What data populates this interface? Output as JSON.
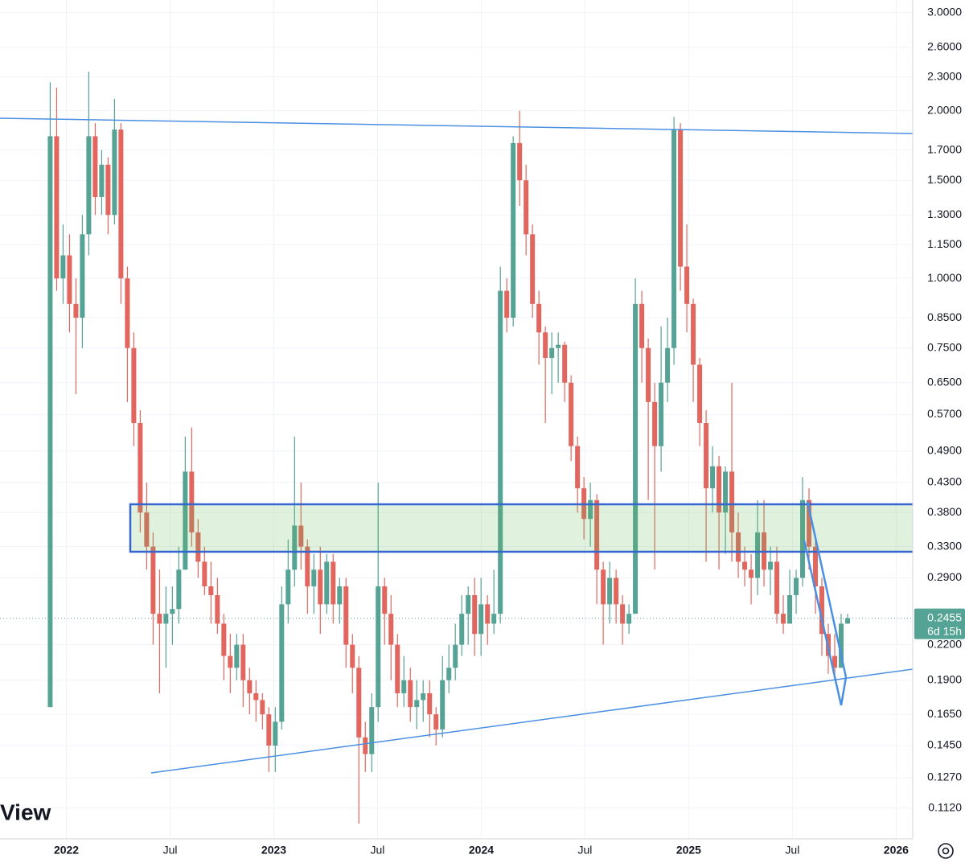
{
  "chart_data": {
    "type": "candlestick",
    "watermark": "View",
    "log_scale": true,
    "grid": true,
    "up_color": "#55a394",
    "down_color": "#e2665e",
    "xlim": [
      2021.68,
      2026.08
    ],
    "xticks": [
      2022,
      {
        "value": 2022.5,
        "label": "Jul"
      },
      2023,
      {
        "value": 2023.5,
        "label": "Jul"
      },
      2024,
      {
        "value": 2024.5,
        "label": "Jul"
      },
      2025,
      {
        "value": 2025.5,
        "label": "Jul"
      },
      2026
    ],
    "ylim": [
      0.0986,
      3.161
    ],
    "yticks": [
      {
        "value": 3,
        "label": "3.0000"
      },
      {
        "value": 2.6,
        "label": "2.6000"
      },
      {
        "value": 2.3,
        "label": "2.3000"
      },
      {
        "value": 2,
        "label": "2.0000"
      },
      {
        "value": 1.7,
        "label": "1.7000"
      },
      {
        "value": 1.5,
        "label": "1.5000"
      },
      {
        "value": 1.3,
        "label": "1.3000"
      },
      {
        "value": 1.15,
        "label": "1.1500"
      },
      {
        "value": 1,
        "label": "1.0000"
      },
      {
        "value": 0.85,
        "label": "0.8500"
      },
      {
        "value": 0.75,
        "label": "0.7500"
      },
      {
        "value": 0.65,
        "label": "0.6500"
      },
      {
        "value": 0.57,
        "label": "0.5700"
      },
      {
        "value": 0.49,
        "label": "0.4900"
      },
      {
        "value": 0.43,
        "label": "0.4300"
      },
      {
        "value": 0.38,
        "label": "0.3800"
      },
      {
        "value": 0.33,
        "label": "0.3300"
      },
      {
        "value": 0.29,
        "label": "0.2900"
      },
      {
        "value": 0.22,
        "label": "0.2200"
      },
      {
        "value": 0.19,
        "label": "0.1900"
      },
      {
        "value": 0.165,
        "label": "0.1650"
      },
      {
        "value": 0.145,
        "label": "0.1450"
      },
      {
        "value": 0.127,
        "label": "0.1270"
      },
      {
        "value": 0.112,
        "label": "0.1120"
      }
    ],
    "last_price": {
      "value": 0.2455,
      "label": "0.2455"
    },
    "countdown": "6d 15h",
    "x": [
      2021.922,
      2021.953,
      2021.984,
      2022.015,
      2022.046,
      2022.077,
      2022.108,
      2022.139,
      2022.17,
      2022.201,
      2022.232,
      2022.263,
      2022.294,
      2022.325,
      2022.356,
      2022.387,
      2022.418,
      2022.449,
      2022.48,
      2022.511,
      2022.542,
      2022.573,
      2022.604,
      2022.635,
      2022.666,
      2022.697,
      2022.728,
      2022.759,
      2022.79,
      2022.821,
      2022.852,
      2022.883,
      2022.914,
      2022.945,
      2022.976,
      2023.007,
      2023.038,
      2023.069,
      2023.1,
      2023.131,
      2023.162,
      2023.193,
      2023.224,
      2023.255,
      2023.286,
      2023.317,
      2023.348,
      2023.379,
      2023.41,
      2023.441,
      2023.472,
      2023.503,
      2023.534,
      2023.565,
      2023.596,
      2023.627,
      2023.658,
      2023.689,
      2023.72,
      2023.751,
      2023.782,
      2023.813,
      2023.844,
      2023.875,
      2023.906,
      2023.937,
      2023.968,
      2023.999,
      2024.03,
      2024.061,
      2024.092,
      2024.123,
      2024.154,
      2024.185,
      2024.216,
      2024.247,
      2024.278,
      2024.309,
      2024.34,
      2024.371,
      2024.402,
      2024.433,
      2024.464,
      2024.495,
      2024.526,
      2024.557,
      2024.588,
      2024.619,
      2024.65,
      2024.681,
      2024.712,
      2024.743,
      2024.774,
      2024.805,
      2024.836,
      2024.867,
      2024.898,
      2024.929,
      2024.96,
      2024.991,
      2025.022,
      2025.053,
      2025.084,
      2025.115,
      2025.146,
      2025.177,
      2025.208,
      2025.239,
      2025.27,
      2025.301,
      2025.332,
      2025.363,
      2025.394,
      2025.425,
      2025.456,
      2025.487,
      2025.518,
      2025.549,
      2025.58,
      2025.611,
      2025.642,
      2025.673,
      2025.704,
      2025.735,
      2025.766
    ],
    "open": [
      0.17,
      1.8,
      1.0,
      1.1,
      0.9,
      0.85,
      1.2,
      1.8,
      1.4,
      1.6,
      1.3,
      1.85,
      1.0,
      0.75,
      0.55,
      0.38,
      0.33,
      0.25,
      0.24,
      0.25,
      0.255,
      0.3,
      0.45,
      0.35,
      0.31,
      0.28,
      0.27,
      0.24,
      0.21,
      0.2,
      0.22,
      0.19,
      0.18,
      0.175,
      0.165,
      0.145,
      0.16,
      0.26,
      0.3,
      0.36,
      0.33,
      0.28,
      0.3,
      0.26,
      0.31,
      0.26,
      0.28,
      0.22,
      0.2,
      0.15,
      0.14,
      0.17,
      0.28,
      0.25,
      0.22,
      0.18,
      0.19,
      0.17,
      0.175,
      0.18,
      0.165,
      0.155,
      0.19,
      0.2,
      0.22,
      0.25,
      0.27,
      0.23,
      0.26,
      0.24,
      0.25,
      0.95,
      0.85,
      1.75,
      1.5,
      1.2,
      0.9,
      0.8,
      0.72,
      0.75,
      0.76,
      0.65,
      0.5,
      0.42,
      0.37,
      0.4,
      0.3,
      0.26,
      0.29,
      0.26,
      0.24,
      0.25,
      0.9,
      0.75,
      0.6,
      0.5,
      0.65,
      0.75,
      1.85,
      1.05,
      0.9,
      0.7,
      0.55,
      0.42,
      0.46,
      0.38,
      0.45,
      0.35,
      0.31,
      0.3,
      0.29,
      0.35,
      0.3,
      0.31,
      0.25,
      0.24,
      0.27,
      0.29,
      0.4,
      0.33,
      0.28,
      0.23,
      0.21,
      0.2,
      0.24
    ],
    "high": [
      2.25,
      2.2,
      1.25,
      1.2,
      1.0,
      1.3,
      2.35,
      1.9,
      1.7,
      1.65,
      2.1,
      1.9,
      1.05,
      0.8,
      0.58,
      0.43,
      0.35,
      0.3,
      0.28,
      0.28,
      0.33,
      0.52,
      0.54,
      0.37,
      0.33,
      0.31,
      0.29,
      0.25,
      0.23,
      0.23,
      0.23,
      0.2,
      0.19,
      0.18,
      0.17,
      0.17,
      0.28,
      0.34,
      0.52,
      0.43,
      0.34,
      0.32,
      0.33,
      0.32,
      0.32,
      0.29,
      0.29,
      0.23,
      0.21,
      0.16,
      0.18,
      0.43,
      0.29,
      0.27,
      0.23,
      0.21,
      0.2,
      0.19,
      0.19,
      0.19,
      0.17,
      0.21,
      0.22,
      0.24,
      0.27,
      0.28,
      0.29,
      0.29,
      0.27,
      0.3,
      1.05,
      1.0,
      1.8,
      2.0,
      1.6,
      1.25,
      0.95,
      0.82,
      0.8,
      0.8,
      0.77,
      0.67,
      0.52,
      0.44,
      0.43,
      0.41,
      0.31,
      0.31,
      0.3,
      0.27,
      0.26,
      1.0,
      0.95,
      0.78,
      0.65,
      0.82,
      0.85,
      1.95,
      1.9,
      1.25,
      0.92,
      0.72,
      0.58,
      0.5,
      0.48,
      0.46,
      0.65,
      0.38,
      0.33,
      0.32,
      0.4,
      0.4,
      0.33,
      0.33,
      0.27,
      0.3,
      0.3,
      0.44,
      0.42,
      0.34,
      0.29,
      0.24,
      0.23,
      0.25,
      0.25
    ],
    "low": [
      0.17,
      0.95,
      0.9,
      0.8,
      0.62,
      0.75,
      1.1,
      1.3,
      1.3,
      1.2,
      1.25,
      0.9,
      0.6,
      0.5,
      0.35,
      0.3,
      0.22,
      0.18,
      0.2,
      0.22,
      0.24,
      0.3,
      0.33,
      0.29,
      0.27,
      0.24,
      0.23,
      0.19,
      0.18,
      0.19,
      0.17,
      0.165,
      0.16,
      0.155,
      0.13,
      0.13,
      0.155,
      0.24,
      0.28,
      0.3,
      0.25,
      0.25,
      0.23,
      0.25,
      0.24,
      0.24,
      0.2,
      0.18,
      0.105,
      0.13,
      0.13,
      0.16,
      0.22,
      0.19,
      0.17,
      0.17,
      0.16,
      0.155,
      0.16,
      0.15,
      0.145,
      0.15,
      0.18,
      0.19,
      0.21,
      0.22,
      0.21,
      0.21,
      0.22,
      0.23,
      0.24,
      0.8,
      0.82,
      1.35,
      1.1,
      0.85,
      0.7,
      0.55,
      0.62,
      0.65,
      0.6,
      0.47,
      0.38,
      0.34,
      0.33,
      0.26,
      0.22,
      0.24,
      0.24,
      0.22,
      0.23,
      0.25,
      0.65,
      0.4,
      0.3,
      0.45,
      0.6,
      0.7,
      0.95,
      0.8,
      0.6,
      0.5,
      0.31,
      0.38,
      0.3,
      0.32,
      0.31,
      0.29,
      0.28,
      0.26,
      0.27,
      0.28,
      0.27,
      0.24,
      0.23,
      0.24,
      0.25,
      0.28,
      0.3,
      0.25,
      0.21,
      0.195,
      0.19,
      0.2,
      0.24
    ],
    "close": [
      1.8,
      1.0,
      1.1,
      0.9,
      0.85,
      1.2,
      1.8,
      1.4,
      1.6,
      1.3,
      1.85,
      1.0,
      0.75,
      0.55,
      0.38,
      0.33,
      0.25,
      0.24,
      0.25,
      0.255,
      0.3,
      0.45,
      0.35,
      0.31,
      0.28,
      0.27,
      0.24,
      0.21,
      0.2,
      0.22,
      0.19,
      0.18,
      0.175,
      0.165,
      0.145,
      0.16,
      0.26,
      0.3,
      0.36,
      0.33,
      0.28,
      0.3,
      0.26,
      0.31,
      0.26,
      0.28,
      0.22,
      0.2,
      0.15,
      0.14,
      0.17,
      0.28,
      0.25,
      0.22,
      0.18,
      0.19,
      0.17,
      0.175,
      0.18,
      0.165,
      0.155,
      0.19,
      0.2,
      0.22,
      0.25,
      0.27,
      0.23,
      0.26,
      0.24,
      0.25,
      0.95,
      0.85,
      1.75,
      1.5,
      1.2,
      0.9,
      0.8,
      0.72,
      0.75,
      0.76,
      0.65,
      0.5,
      0.42,
      0.37,
      0.4,
      0.3,
      0.26,
      0.29,
      0.26,
      0.24,
      0.25,
      0.9,
      0.75,
      0.6,
      0.5,
      0.65,
      0.75,
      1.85,
      1.05,
      0.9,
      0.7,
      0.55,
      0.42,
      0.46,
      0.38,
      0.45,
      0.35,
      0.31,
      0.3,
      0.29,
      0.35,
      0.3,
      0.31,
      0.25,
      0.24,
      0.27,
      0.29,
      0.4,
      0.33,
      0.28,
      0.23,
      0.21,
      0.2,
      0.24,
      0.2455
    ]
  }
}
